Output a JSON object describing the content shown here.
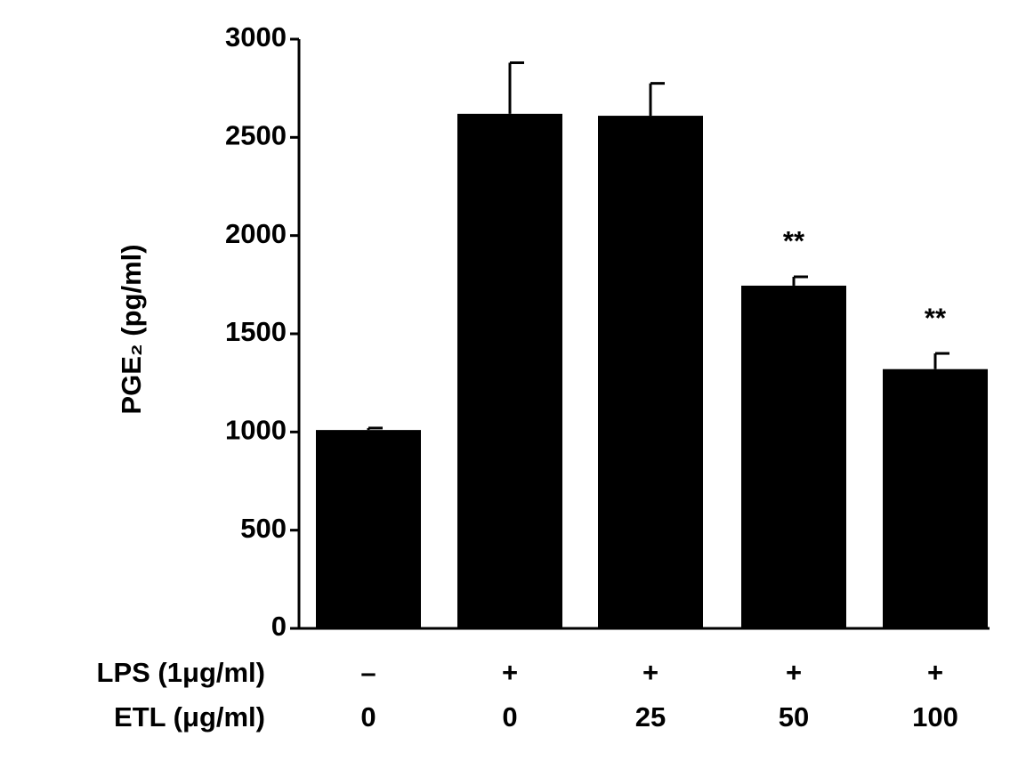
{
  "chart_data": {
    "type": "bar",
    "y_label": "PGE₂ (pg/ml)",
    "category_rows": [
      {
        "label": "LPS (1μg/ml)",
        "values": [
          "–",
          "+",
          "+",
          "+",
          "+"
        ]
      },
      {
        "label": "ETL (μg/ml)",
        "values": [
          "0",
          "0",
          "25",
          "50",
          "100"
        ]
      }
    ],
    "values": [
      1010,
      2620,
      2610,
      1745,
      1320
    ],
    "errors": [
      10,
      260,
      165,
      45,
      80
    ],
    "annotations": [
      null,
      null,
      null,
      "**",
      "**"
    ],
    "color": "#000000",
    "ylim": [
      0,
      3000
    ],
    "yticks": [
      0,
      500,
      1000,
      1500,
      2000,
      2500,
      3000
    ],
    "grid": false
  }
}
